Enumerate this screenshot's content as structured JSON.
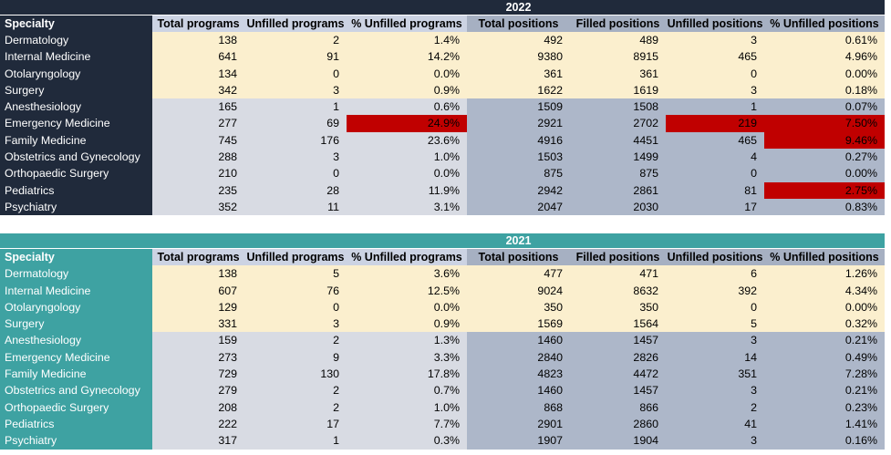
{
  "colors": {
    "red_highlight": "#C00000",
    "table_2022_brand": "#202A3B",
    "table_2021_brand": "#3EA2A2",
    "cream_row": "#FBEFCE",
    "gray_row_programs": "#D8DBE3",
    "gray_row_positions": "#ADB7C9",
    "header_programs_bg": "#CCD3E3",
    "header_positions_bg": "#A6B0C2"
  },
  "chart_data": [
    {
      "type": "table",
      "title": "2022",
      "theme": {
        "brand": "#202A3B"
      },
      "columns": [
        "Specialty",
        "Total programs",
        "Unfilled programs",
        "% Unfilled programs",
        "Total positions",
        "Filled positions",
        "Unfilled positions",
        "% Unfilled positions"
      ],
      "rows": [
        {
          "specialty": "Dermatology",
          "values": [
            "138",
            "2",
            "1.4%",
            "492",
            "489",
            "3",
            "0.61%"
          ],
          "tone": "cream",
          "red_value_indexes": []
        },
        {
          "specialty": "Internal Medicine",
          "values": [
            "641",
            "91",
            "14.2%",
            "9380",
            "8915",
            "465",
            "4.96%"
          ],
          "tone": "cream",
          "red_value_indexes": []
        },
        {
          "specialty": "Otolaryngology",
          "values": [
            "134",
            "0",
            "0.0%",
            "361",
            "361",
            "0",
            "0.00%"
          ],
          "tone": "cream",
          "red_value_indexes": []
        },
        {
          "specialty": "Surgery",
          "values": [
            "342",
            "3",
            "0.9%",
            "1622",
            "1619",
            "3",
            "0.18%"
          ],
          "tone": "cream",
          "red_value_indexes": []
        },
        {
          "specialty": "Anesthesiology",
          "values": [
            "165",
            "1",
            "0.6%",
            "1509",
            "1508",
            "1",
            "0.07%"
          ],
          "tone": "gray",
          "red_value_indexes": []
        },
        {
          "specialty": "Emergency Medicine",
          "values": [
            "277",
            "69",
            "24.9%",
            "2921",
            "2702",
            "219",
            "7.50%"
          ],
          "tone": "gray",
          "red_value_indexes": [
            2,
            5,
            6
          ]
        },
        {
          "specialty": "Family Medicine",
          "values": [
            "745",
            "176",
            "23.6%",
            "4916",
            "4451",
            "465",
            "9.46%"
          ],
          "tone": "gray",
          "red_value_indexes": [
            6
          ]
        },
        {
          "specialty": "Obstetrics and Gynecology",
          "values": [
            "288",
            "3",
            "1.0%",
            "1503",
            "1499",
            "4",
            "0.27%"
          ],
          "tone": "gray",
          "red_value_indexes": []
        },
        {
          "specialty": "Orthopaedic Surgery",
          "values": [
            "210",
            "0",
            "0.0%",
            "875",
            "875",
            "0",
            "0.00%"
          ],
          "tone": "gray",
          "red_value_indexes": []
        },
        {
          "specialty": "Pediatrics",
          "values": [
            "235",
            "28",
            "11.9%",
            "2942",
            "2861",
            "81",
            "2.75%"
          ],
          "tone": "gray",
          "red_value_indexes": [
            6
          ]
        },
        {
          "specialty": "Psychiatry",
          "values": [
            "352",
            "11",
            "3.1%",
            "2047",
            "2030",
            "17",
            "0.83%"
          ],
          "tone": "gray",
          "red_value_indexes": []
        }
      ]
    },
    {
      "type": "table",
      "title": "2021",
      "theme": {
        "brand": "#3EA2A2"
      },
      "columns": [
        "Specialty",
        "Total programs",
        "Unfilled programs",
        "% Unfilled programs",
        "Total positions",
        "Filled positions",
        "Unfilled positions",
        "% Unfilled positions"
      ],
      "rows": [
        {
          "specialty": "Dermatology",
          "values": [
            "138",
            "5",
            "3.6%",
            "477",
            "471",
            "6",
            "1.26%"
          ],
          "tone": "cream",
          "red_value_indexes": []
        },
        {
          "specialty": "Internal Medicine",
          "values": [
            "607",
            "76",
            "12.5%",
            "9024",
            "8632",
            "392",
            "4.34%"
          ],
          "tone": "cream",
          "red_value_indexes": []
        },
        {
          "specialty": "Otolaryngology",
          "values": [
            "129",
            "0",
            "0.0%",
            "350",
            "350",
            "0",
            "0.00%"
          ],
          "tone": "cream",
          "red_value_indexes": []
        },
        {
          "specialty": "Surgery",
          "values": [
            "331",
            "3",
            "0.9%",
            "1569",
            "1564",
            "5",
            "0.32%"
          ],
          "tone": "cream",
          "red_value_indexes": []
        },
        {
          "specialty": "Anesthesiology",
          "values": [
            "159",
            "2",
            "1.3%",
            "1460",
            "1457",
            "3",
            "0.21%"
          ],
          "tone": "gray",
          "red_value_indexes": []
        },
        {
          "specialty": "Emergency Medicine",
          "values": [
            "273",
            "9",
            "3.3%",
            "2840",
            "2826",
            "14",
            "0.49%"
          ],
          "tone": "gray",
          "red_value_indexes": []
        },
        {
          "specialty": "Family Medicine",
          "values": [
            "729",
            "130",
            "17.8%",
            "4823",
            "4472",
            "351",
            "7.28%"
          ],
          "tone": "gray",
          "red_value_indexes": []
        },
        {
          "specialty": "Obstetrics and Gynecology",
          "values": [
            "279",
            "2",
            "0.7%",
            "1460",
            "1457",
            "3",
            "0.21%"
          ],
          "tone": "gray",
          "red_value_indexes": []
        },
        {
          "specialty": "Orthopaedic Surgery",
          "values": [
            "208",
            "2",
            "1.0%",
            "868",
            "866",
            "2",
            "0.23%"
          ],
          "tone": "gray",
          "red_value_indexes": []
        },
        {
          "specialty": "Pediatrics",
          "values": [
            "222",
            "17",
            "7.7%",
            "2901",
            "2860",
            "41",
            "1.41%"
          ],
          "tone": "gray",
          "red_value_indexes": []
        },
        {
          "specialty": "Psychiatry",
          "values": [
            "317",
            "1",
            "0.3%",
            "1907",
            "1904",
            "3",
            "0.16%"
          ],
          "tone": "gray",
          "red_value_indexes": []
        }
      ]
    }
  ]
}
